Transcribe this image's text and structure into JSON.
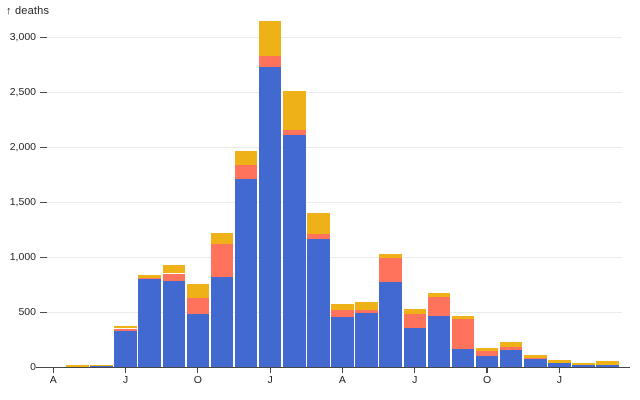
{
  "chart_data": {
    "type": "bar",
    "stacked": true,
    "axis_label": "↑ deaths",
    "ylabel": "deaths",
    "xlabel": "",
    "grid": true,
    "legend": "none",
    "ylim": [
      0,
      3200
    ],
    "n_bars": 24,
    "y_ticks": {
      "values": [
        0,
        500,
        1000,
        1500,
        2000,
        2500,
        3000
      ],
      "labels": [
        "0",
        "500",
        "1,000",
        "1,500",
        "2,000",
        "2,500",
        "3,000"
      ]
    },
    "x_ticks": [
      {
        "slot": 0,
        "label": "A"
      },
      {
        "slot": 3,
        "label": "J"
      },
      {
        "slot": 6,
        "label": "O"
      },
      {
        "slot": 9,
        "label": "J"
      },
      {
        "slot": 12,
        "label": "A"
      },
      {
        "slot": 15,
        "label": "J"
      },
      {
        "slot": 18,
        "label": "O"
      },
      {
        "slot": 21,
        "label": "J"
      }
    ],
    "series": [
      {
        "name": "series-blue",
        "color": "#4269d0",
        "values": [
          0,
          0,
          10,
          330,
          805,
          780,
          480,
          820,
          1710,
          2730,
          2110,
          1165,
          455,
          490,
          775,
          355,
          460,
          165,
          100,
          155,
          70,
          40,
          18,
          18
        ]
      },
      {
        "name": "series-red",
        "color": "#ff725c",
        "values": [
          0,
          0,
          0,
          20,
          5,
          70,
          150,
          300,
          130,
          100,
          45,
          45,
          65,
          30,
          215,
          130,
          180,
          270,
          45,
          30,
          10,
          0,
          0,
          0
        ]
      },
      {
        "name": "series-orange",
        "color": "#efb118",
        "values": [
          0,
          20,
          5,
          20,
          25,
          80,
          125,
          100,
          120,
          320,
          355,
          190,
          55,
          70,
          35,
          45,
          30,
          30,
          25,
          40,
          30,
          25,
          18,
          37
        ]
      }
    ],
    "colors": {
      "grid": "#ebebeb",
      "axis": "#474747",
      "text": "#242424"
    }
  }
}
